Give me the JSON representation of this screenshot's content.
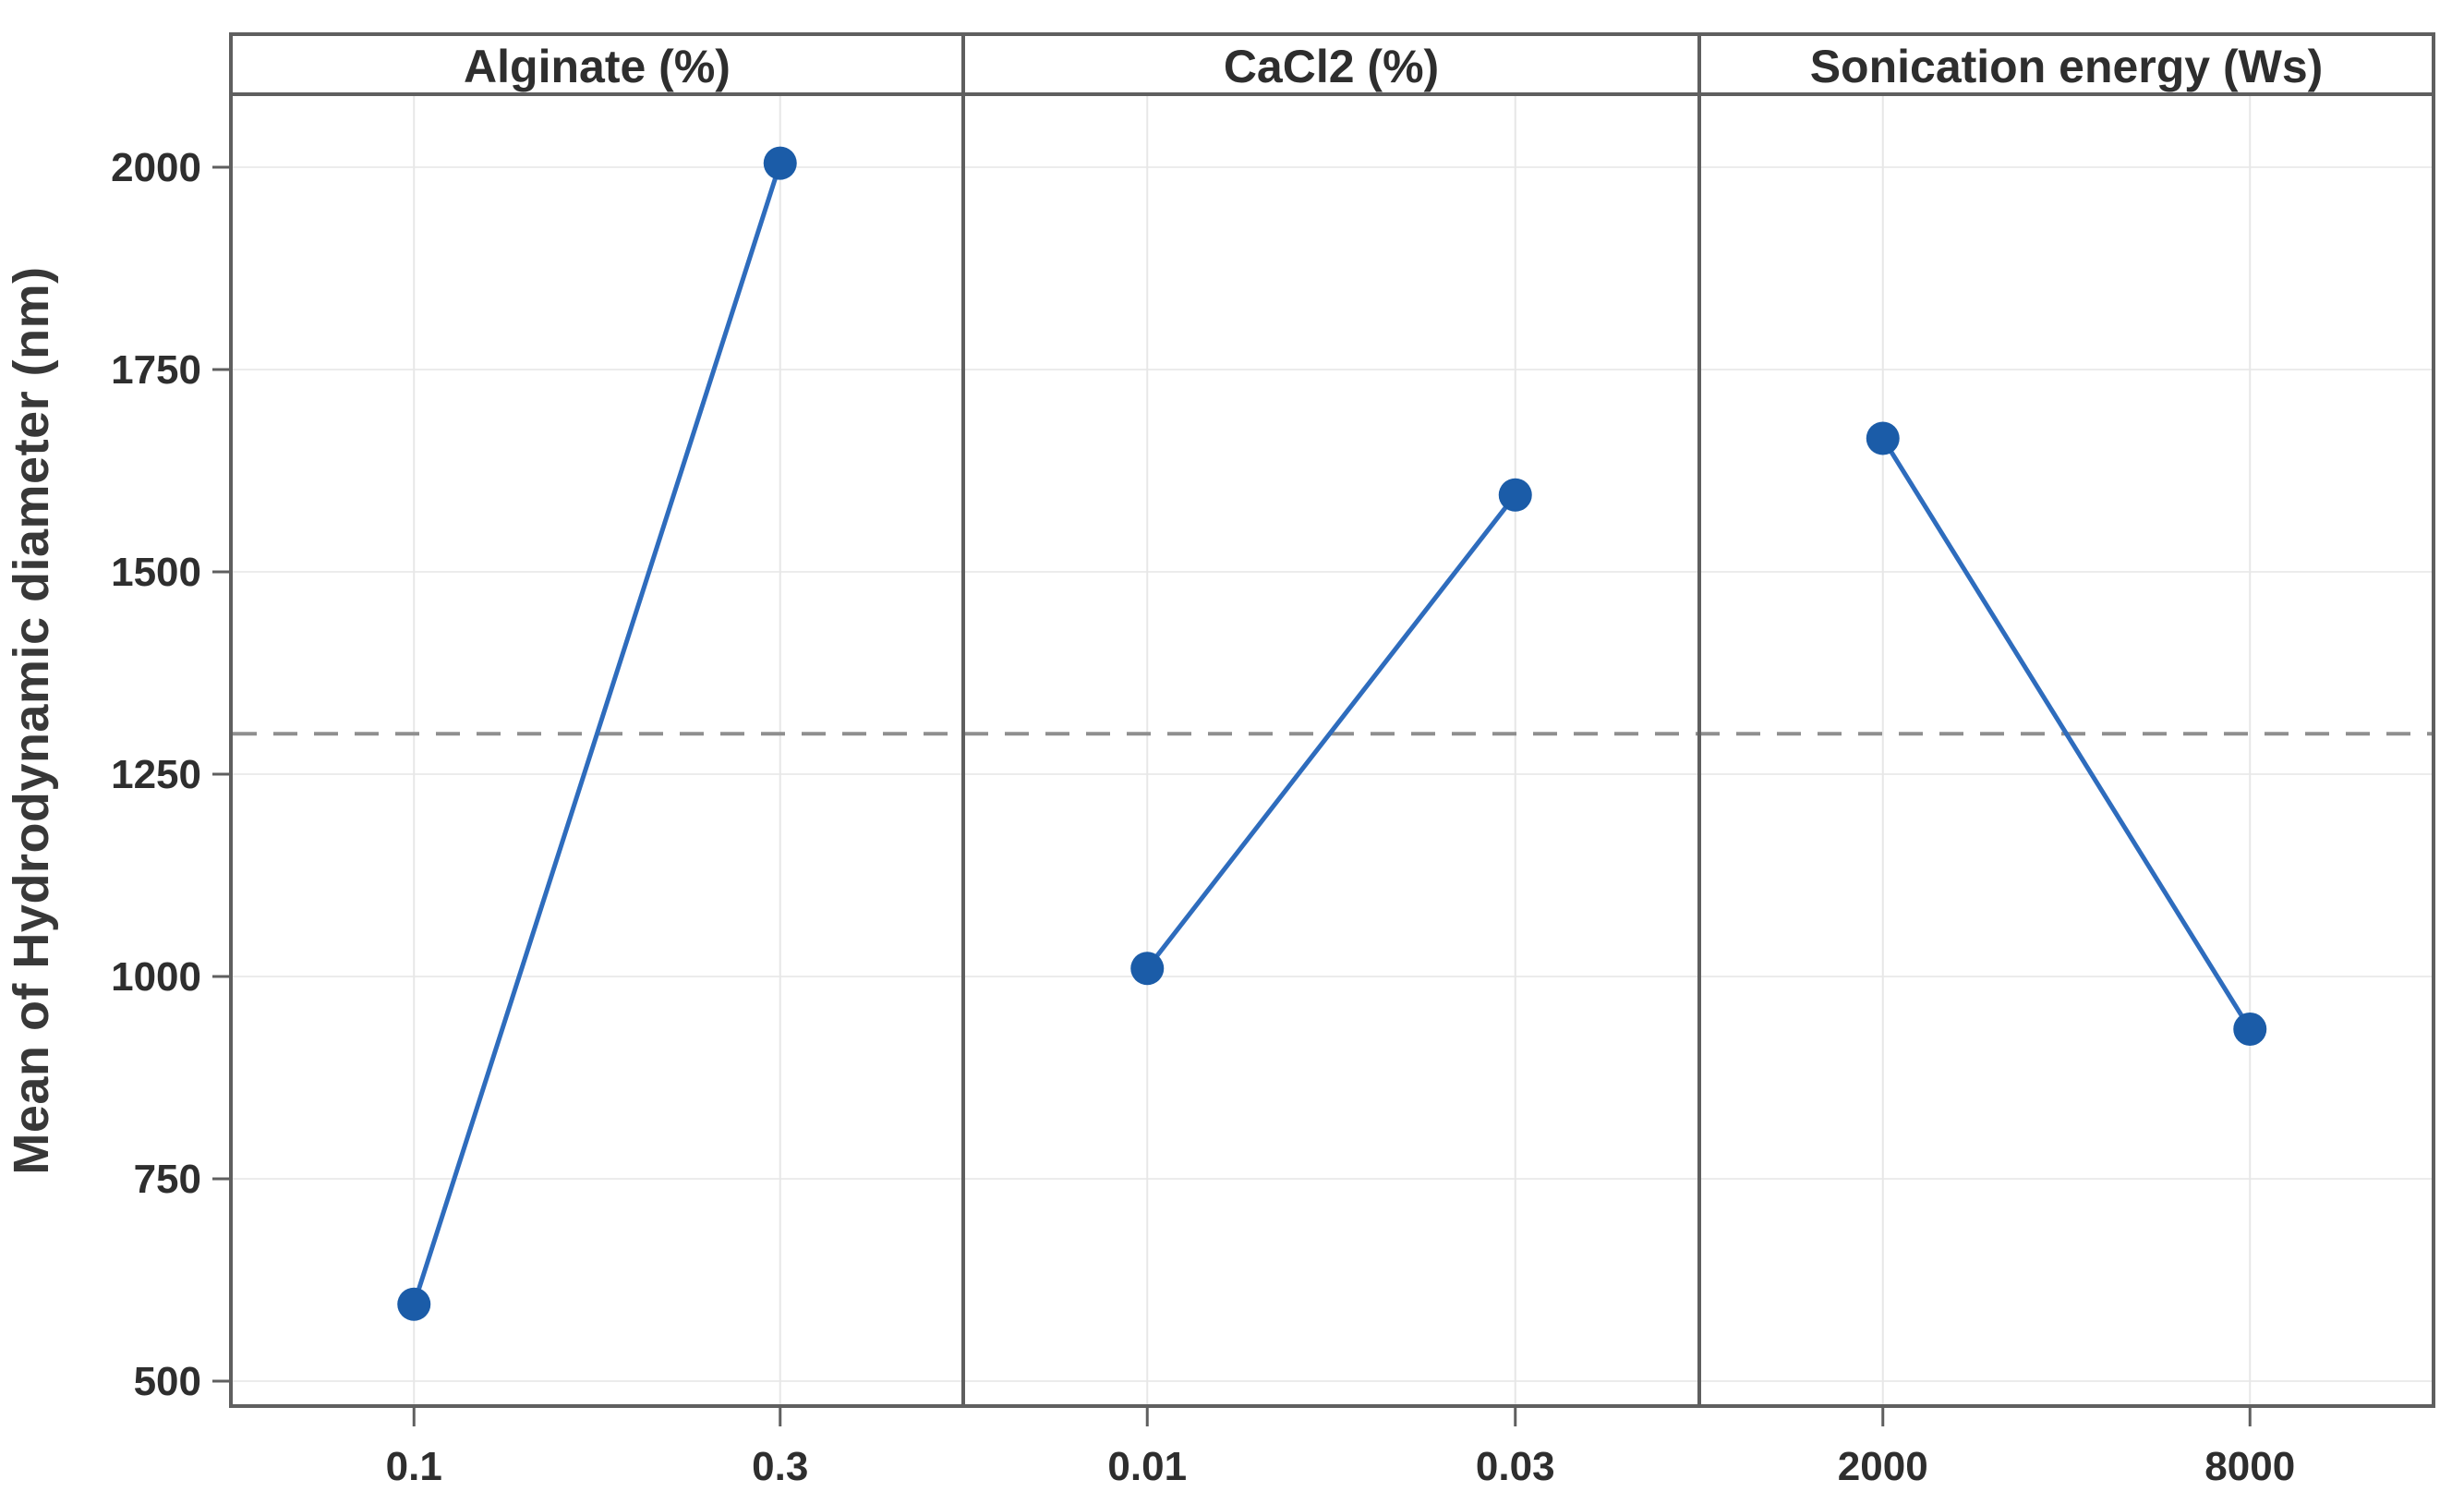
{
  "chart_data": {
    "type": "line",
    "description": "Main effects plot with three factor panels sharing one y-axis",
    "ylabel": "Mean of Hydrodynamic diameter (nm)",
    "ylim": [
      470,
      2090
    ],
    "yticks": [
      500,
      750,
      1000,
      1250,
      1500,
      1750,
      2000
    ],
    "grid": true,
    "legend": "none",
    "reference_line": {
      "value": 1300,
      "style": "dashed"
    },
    "panels": [
      {
        "header": "Alginate (%)",
        "categories": [
          "0.1",
          "0.3"
        ],
        "values": [
          595,
          2005
        ]
      },
      {
        "header": "CaCl2 (%)",
        "categories": [
          "0.01",
          "0.03"
        ],
        "values": [
          1010,
          1595
        ]
      },
      {
        "header": "Sonication energy (Ws)",
        "categories": [
          "2000",
          "8000"
        ],
        "values": [
          1665,
          935
        ]
      }
    ],
    "colors": {
      "marker": "#1b5ca8",
      "line": "#2e6cbd",
      "reference": "#8f8f8f",
      "border": "#5f5f5f",
      "grid_h": "#ececec",
      "grid_v": "#e7e7e7",
      "tick_text": "#2e2e2e",
      "header_text": "#3c3c3c"
    }
  }
}
